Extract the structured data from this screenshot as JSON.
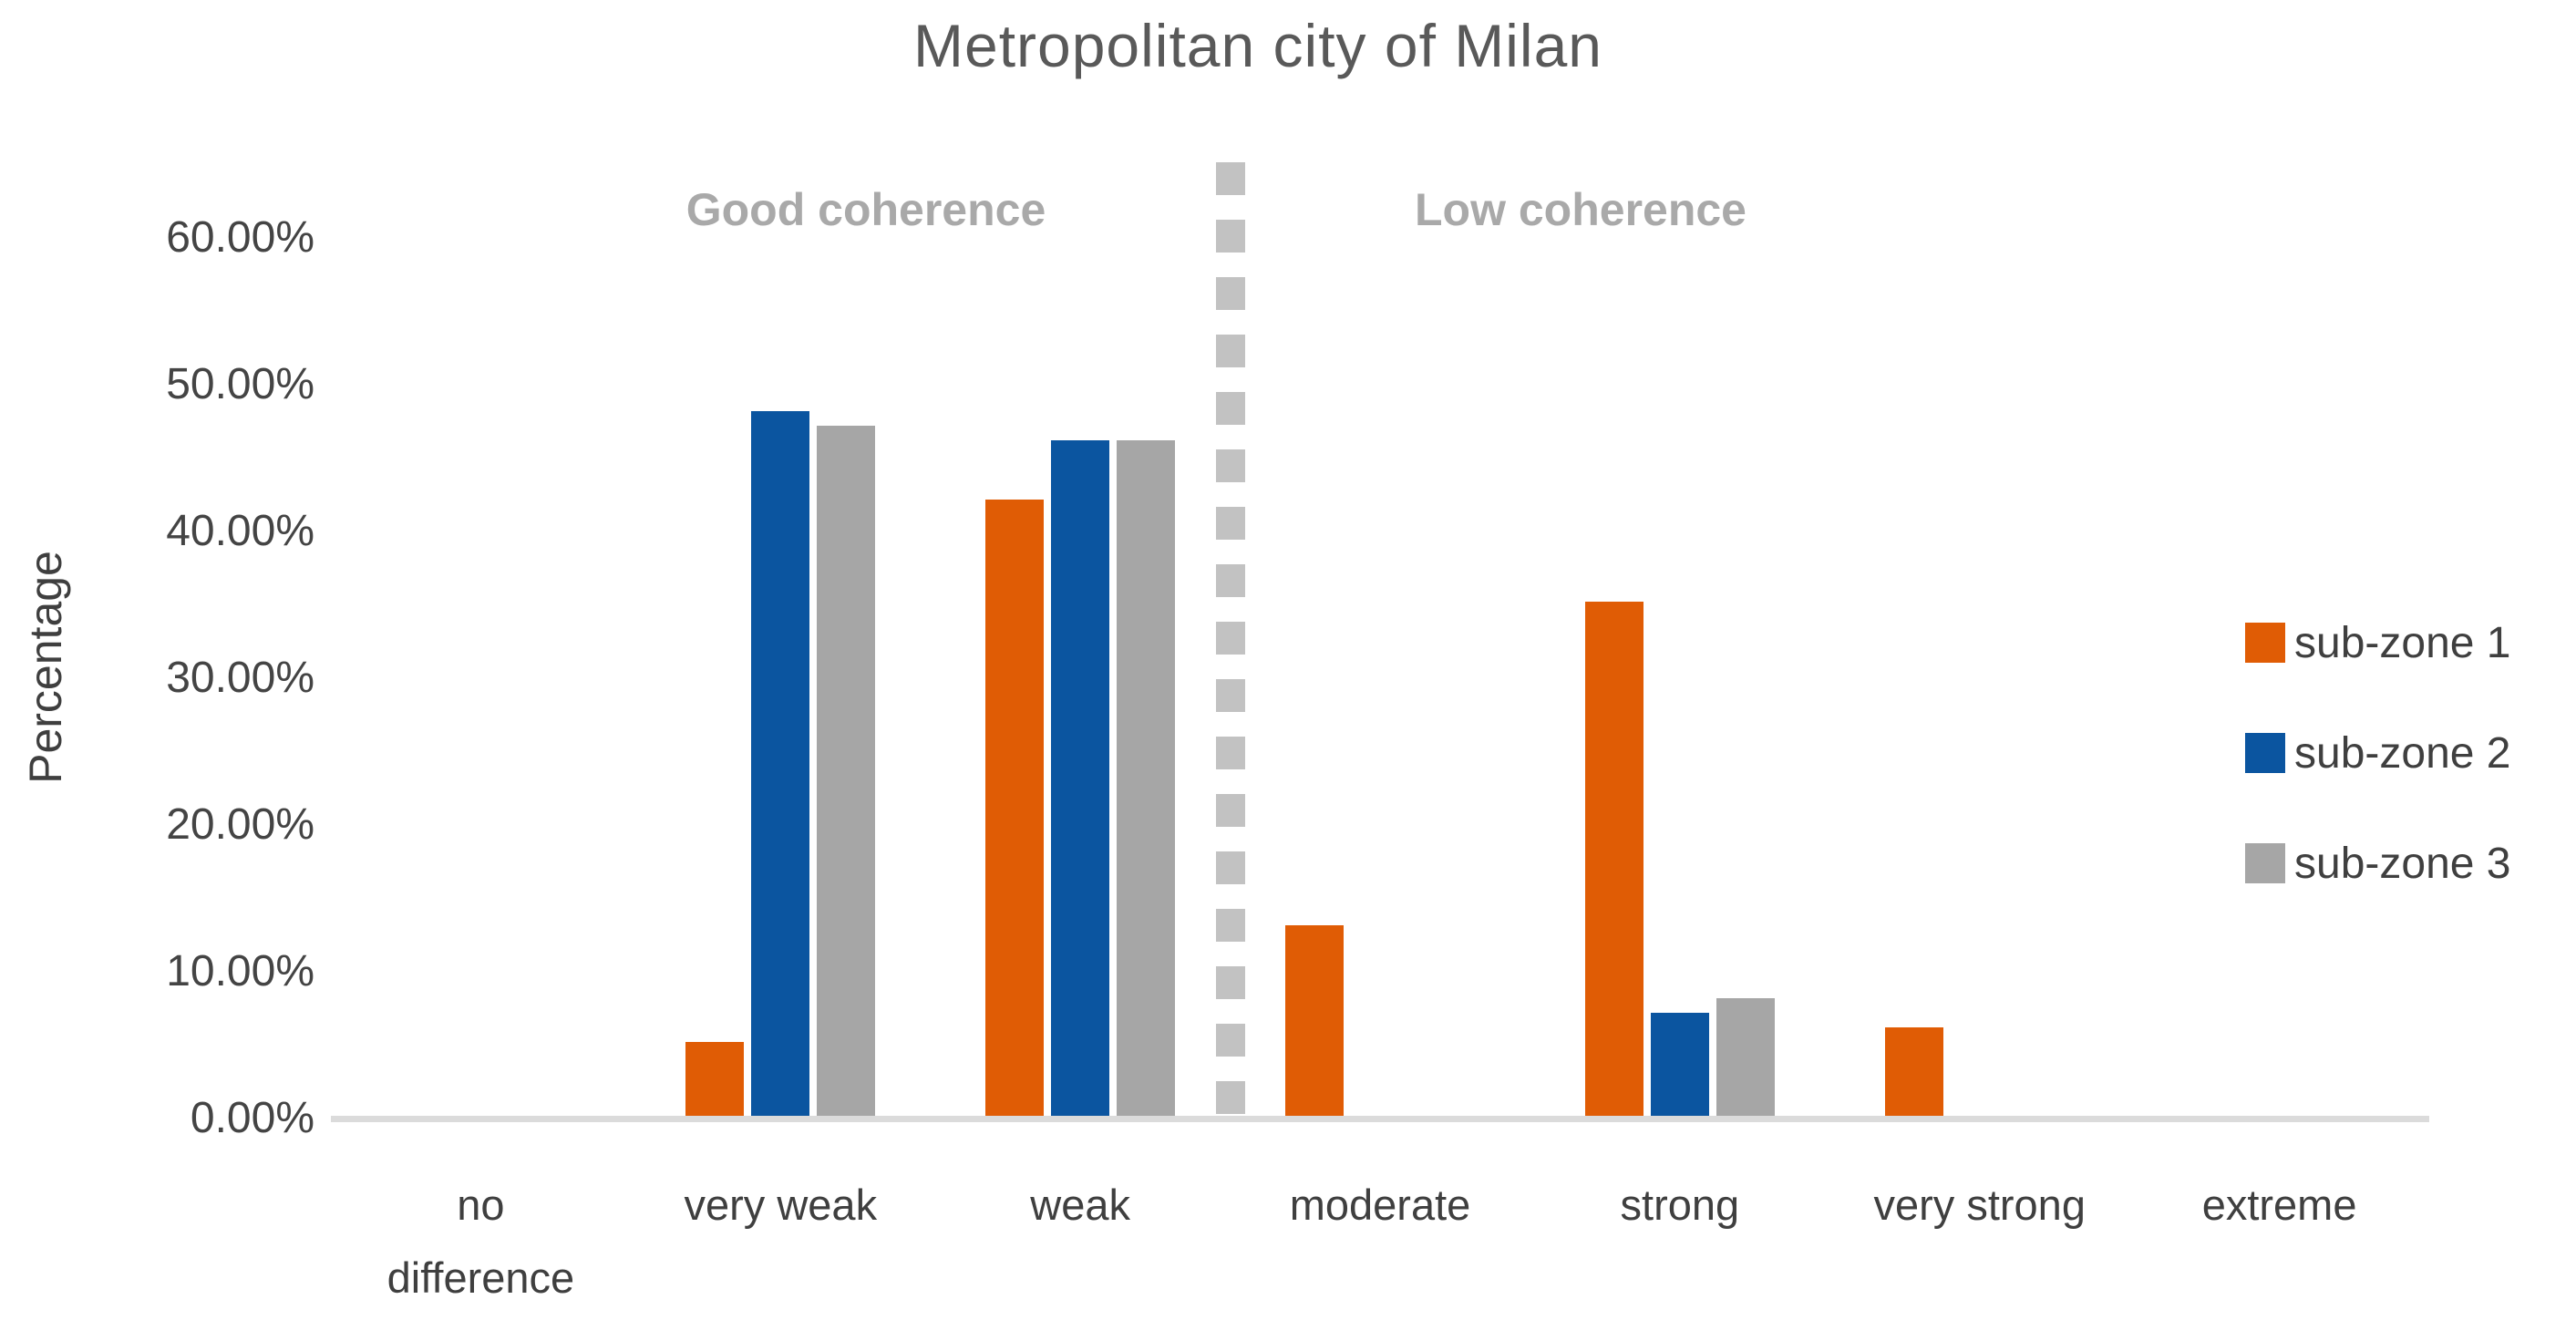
{
  "chart_data": {
    "type": "bar",
    "title": "Metropolitan city of Milan",
    "ylabel": "Percentage",
    "xlabel": "",
    "categories": [
      "no difference",
      "very weak",
      "weak",
      "moderate",
      "strong",
      "very strong",
      "extreme"
    ],
    "x_label_lines": [
      [
        "no",
        "difference"
      ],
      [
        "very weak"
      ],
      [
        "weak"
      ],
      [
        "moderate"
      ],
      [
        "strong"
      ],
      [
        "very strong"
      ],
      [
        "extreme"
      ]
    ],
    "series": [
      {
        "name": "sub-zone 1",
        "color": "#E05C05",
        "values": [
          0,
          5,
          42,
          13,
          35,
          6,
          0
        ]
      },
      {
        "name": "sub-zone 2",
        "color": "#0B55A0",
        "values": [
          0,
          48,
          46,
          0,
          7,
          0,
          0
        ]
      },
      {
        "name": "sub-zone 3",
        "color": "#A6A6A6",
        "values": [
          0,
          47,
          46,
          0,
          8,
          0,
          0
        ]
      }
    ],
    "unit": "%",
    "y_ticks": {
      "values": [
        0,
        10,
        20,
        30,
        40,
        50,
        60
      ],
      "labels": [
        "0.00%",
        "10.00%",
        "20.00%",
        "30.00%",
        "40.00%",
        "50.00%",
        "60.00%"
      ]
    },
    "ylim": [
      0,
      65
    ],
    "grid": false,
    "legend_position": "right",
    "legend_marker": "square",
    "annotations": [
      {
        "text": "Good coherence",
        "side": "left-of-divider"
      },
      {
        "text": "Low coherence",
        "side": "right-of-divider"
      }
    ],
    "divider": {
      "style": "dashed",
      "after_category": "weak",
      "color": "#C2C2C2"
    }
  },
  "colors": {
    "background": "#FFFFFF",
    "title": "#595959",
    "axis_title": "#3F3F3F",
    "tick_labels": "#444444",
    "x_labels": "#3F3F3F",
    "annotation": "#A9A9A9",
    "axis_line": "#DBDBDB",
    "legend_text": "#3F3F3F"
  }
}
